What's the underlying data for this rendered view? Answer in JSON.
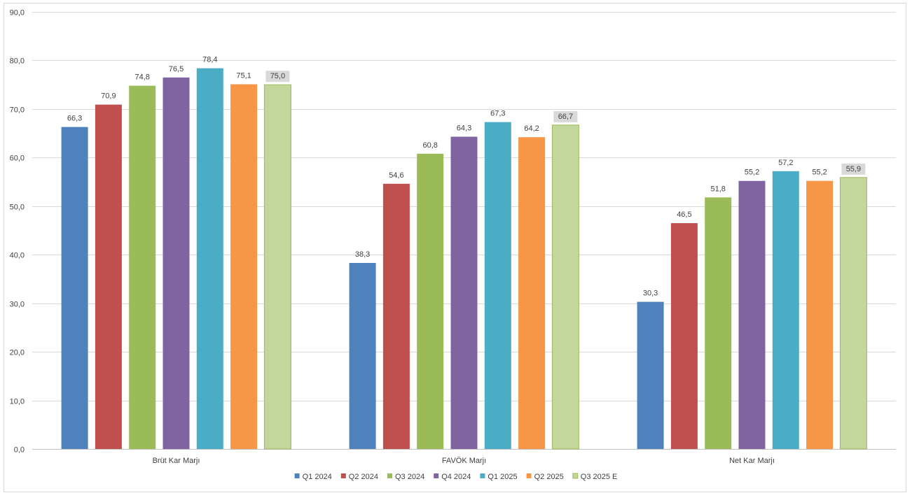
{
  "chart_data": {
    "type": "bar",
    "categories": [
      "Brüt Kar Marjı",
      "FAVÖK Marjı",
      "Net Kar Marjı"
    ],
    "series": [
      {
        "name": "Q1 2024",
        "color": "#4f81bd",
        "values": [
          66.3,
          38.3,
          30.3
        ],
        "labels": [
          "66,3",
          "38,3",
          "30,3"
        ]
      },
      {
        "name": "Q2 2024",
        "color": "#c0504d",
        "values": [
          70.9,
          54.6,
          46.5
        ],
        "labels": [
          "70,9",
          "54,6",
          "46,5"
        ]
      },
      {
        "name": "Q3 2024",
        "color": "#9bbb59",
        "values": [
          74.8,
          60.8,
          51.8
        ],
        "labels": [
          "74,8",
          "60,8",
          "51,8"
        ]
      },
      {
        "name": "Q4 2024",
        "color": "#8064a2",
        "values": [
          76.5,
          64.3,
          55.2
        ],
        "labels": [
          "76,5",
          "64,3",
          "55,2"
        ]
      },
      {
        "name": "Q1 2025",
        "color": "#4bacc6",
        "values": [
          78.4,
          67.3,
          57.2
        ],
        "labels": [
          "78,4",
          "67,3",
          "57,2"
        ]
      },
      {
        "name": "Q2 2025",
        "color": "#f79646",
        "values": [
          75.1,
          64.2,
          55.2
        ],
        "labels": [
          "75,1",
          "64,2",
          "55,2"
        ]
      },
      {
        "name": "Q3 2025 E",
        "color": "#c3d69b",
        "border": "#9bbb59",
        "label_bg": "#d9d9d9",
        "values": [
          75.0,
          66.7,
          55.9
        ],
        "labels": [
          "75,0",
          "66,7",
          "55,9"
        ]
      }
    ],
    "ylim": [
      0,
      90
    ],
    "yticks": [
      "0,0",
      "10,0",
      "20,0",
      "30,0",
      "40,0",
      "50,0",
      "60,0",
      "70,0",
      "80,0",
      "90,0"
    ],
    "ytick_values": [
      0,
      10,
      20,
      30,
      40,
      50,
      60,
      70,
      80,
      90
    ],
    "grid": true,
    "legend": "bottom",
    "title": "",
    "xlabel": "",
    "ylabel": ""
  }
}
